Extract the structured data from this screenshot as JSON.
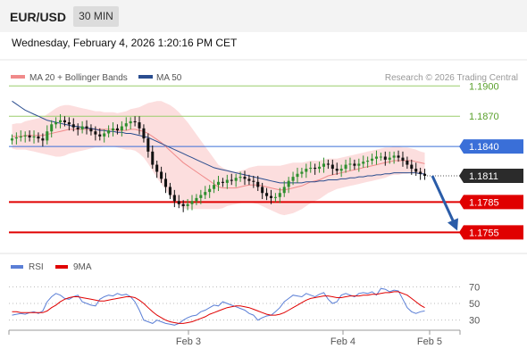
{
  "header": {
    "pair": "EUR/USD",
    "timeframe": "30 MIN"
  },
  "datetime": "Wednesday, February 4, 2026 1:20:16 PM CET",
  "legend": {
    "ma20": {
      "label": "MA 20 + Bollinger Bands",
      "color": "#f08a8a"
    },
    "ma50": {
      "label": "MA 50",
      "color": "#2a4d8f"
    }
  },
  "copyright": "Research © 2026 Trading Central",
  "rsi_legend": {
    "rsi": {
      "label": "RSI",
      "color": "#5b7fd6"
    },
    "ma9": {
      "label": "9MA",
      "color": "#e00000"
    }
  },
  "colors": {
    "up": "#2f8f2f",
    "down": "#111111",
    "resistance": "#9acd6b",
    "pivot": "#3a6fd8",
    "support": "#e00000",
    "current": "#333333",
    "arrow": "#2a5ca8"
  },
  "chart_data": [
    {
      "type": "candlestick",
      "ylim": [
        1.1735,
        1.1925
      ],
      "x_ticks": [
        "Feb 3",
        "Feb 4",
        "Feb 5"
      ],
      "levels": [
        {
          "label": "1.1900",
          "value": 1.19,
          "kind": "resistance"
        },
        {
          "label": "1.1870",
          "value": 1.187,
          "kind": "resistance"
        },
        {
          "label": "1.1840",
          "value": 1.184,
          "kind": "pivot"
        },
        {
          "label": "1.1811",
          "value": 1.1811,
          "kind": "current"
        },
        {
          "label": "1.1785",
          "value": 1.1785,
          "kind": "support"
        },
        {
          "label": "1.1755",
          "value": 1.1755,
          "kind": "support"
        }
      ],
      "close": [
        1.1848,
        1.1849,
        1.185,
        1.1851,
        1.1849,
        1.185,
        1.1848,
        1.1846,
        1.1855,
        1.1862,
        1.1864,
        1.1866,
        1.1864,
        1.1862,
        1.1859,
        1.1857,
        1.186,
        1.1858,
        1.1855,
        1.1852,
        1.185,
        1.1853,
        1.1856,
        1.1858,
        1.1856,
        1.186,
        1.1863,
        1.1865,
        1.1864,
        1.1858,
        1.1848,
        1.1835,
        1.1822,
        1.1815,
        1.1808,
        1.18,
        1.1792,
        1.1786,
        1.1783,
        1.1781,
        1.1783,
        1.1786,
        1.1789,
        1.1792,
        1.1795,
        1.1798,
        1.1802,
        1.1805,
        1.1804,
        1.1807,
        1.1806,
        1.1809,
        1.181,
        1.1808,
        1.1806,
        1.1805,
        1.18,
        1.1794,
        1.1791,
        1.1789,
        1.179,
        1.1794,
        1.18,
        1.1806,
        1.181,
        1.1813,
        1.1815,
        1.1818,
        1.1819,
        1.1818,
        1.182,
        1.1823,
        1.1822,
        1.1818,
        1.1816,
        1.1818,
        1.1822,
        1.1823,
        1.1821,
        1.1823,
        1.1825,
        1.1826,
        1.1828,
        1.183,
        1.183,
        1.1827,
        1.1829,
        1.1831,
        1.1829,
        1.1826,
        1.1822,
        1.1818,
        1.1815,
        1.1813,
        1.1811
      ],
      "ma20": [
        1.185,
        1.185,
        1.185,
        1.1851,
        1.1851,
        1.1851,
        1.1851,
        1.1851,
        1.1852,
        1.1853,
        1.1854,
        1.1855,
        1.1856,
        1.1857,
        1.1857,
        1.1857,
        1.1857,
        1.1857,
        1.1857,
        1.1857,
        1.1857,
        1.1857,
        1.1857,
        1.1857,
        1.1856,
        1.1856,
        1.1856,
        1.1857,
        1.1857,
        1.1856,
        1.1855,
        1.1853,
        1.185,
        1.1847,
        1.1844,
        1.184,
        1.1836,
        1.1832,
        1.1828,
        1.1824,
        1.1821,
        1.1818,
        1.1815,
        1.1812,
        1.1809,
        1.1806,
        1.1803,
        1.18,
        1.1799,
        1.1799,
        1.1799,
        1.1799,
        1.18,
        1.1801,
        1.1802,
        1.1802,
        1.1802,
        1.1801,
        1.18,
        1.1799,
        1.1798,
        1.1797,
        1.1797,
        1.1798,
        1.1799,
        1.18,
        1.1801,
        1.1803,
        1.1805,
        1.1806,
        1.1807,
        1.1809,
        1.1811,
        1.1812,
        1.1813,
        1.1814,
        1.1815,
        1.1816,
        1.1817,
        1.1818,
        1.1819,
        1.182,
        1.1821,
        1.1822,
        1.1823,
        1.1824,
        1.1825,
        1.1826,
        1.1826,
        1.1826,
        1.1826,
        1.1826,
        1.1825,
        1.1824,
        1.1823
      ],
      "ma50": [
        1.1885,
        1.1882,
        1.1879,
        1.1876,
        1.1874,
        1.1872,
        1.187,
        1.1868,
        1.1866,
        1.1865,
        1.1864,
        1.1863,
        1.1862,
        1.1861,
        1.186,
        1.186,
        1.1859,
        1.1858,
        1.1858,
        1.1857,
        1.1856,
        1.1856,
        1.1855,
        1.1855,
        1.1854,
        1.1854,
        1.1853,
        1.1853,
        1.1852,
        1.1851,
        1.185,
        1.1849,
        1.1847,
        1.1845,
        1.1843,
        1.1841,
        1.1839,
        1.1837,
        1.1835,
        1.1833,
        1.1831,
        1.1829,
        1.1827,
        1.1825,
        1.1823,
        1.1821,
        1.1819,
        1.1818,
        1.1817,
        1.1816,
        1.1815,
        1.1814,
        1.1813,
        1.1812,
        1.1811,
        1.181,
        1.1809,
        1.1808,
        1.1807,
        1.1806,
        1.1805,
        1.1804,
        1.1804,
        1.1804,
        1.1804,
        1.1804,
        1.1804,
        1.1805,
        1.1805,
        1.1805,
        1.1806,
        1.1806,
        1.1807,
        1.1807,
        1.1807,
        1.1808,
        1.1808,
        1.1809,
        1.1809,
        1.181,
        1.181,
        1.1811,
        1.1811,
        1.1812,
        1.1812,
        1.1813,
        1.1813,
        1.1814,
        1.1814,
        1.1814,
        1.1814,
        1.1814,
        1.1814,
        1.1813,
        1.1813
      ],
      "bb_width": [
        0.0012,
        0.0013,
        0.0013,
        0.0014,
        0.0015,
        0.0016,
        0.0017,
        0.0018,
        0.002,
        0.0022,
        0.0024,
        0.0025,
        0.0025,
        0.0024,
        0.0023,
        0.0022,
        0.0021,
        0.002,
        0.0019,
        0.0018,
        0.0018,
        0.0017,
        0.0017,
        0.0017,
        0.0017,
        0.0018,
        0.0019,
        0.002,
        0.0021,
        0.0023,
        0.0026,
        0.003,
        0.0034,
        0.0038,
        0.0041,
        0.0043,
        0.0045,
        0.0046,
        0.0046,
        0.0045,
        0.0043,
        0.004,
        0.0037,
        0.0034,
        0.0031,
        0.0028,
        0.0025,
        0.0022,
        0.002,
        0.0018,
        0.0017,
        0.0016,
        0.0016,
        0.0016,
        0.0017,
        0.0018,
        0.0019,
        0.002,
        0.0021,
        0.0022,
        0.0023,
        0.0024,
        0.0025,
        0.0025,
        0.0025,
        0.0024,
        0.0023,
        0.0022,
        0.0021,
        0.002,
        0.0019,
        0.0018,
        0.0017,
        0.0016,
        0.0015,
        0.0015,
        0.0015,
        0.0015,
        0.0015,
        0.0015,
        0.0015,
        0.0015,
        0.0015,
        0.0015,
        0.0015,
        0.0015,
        0.0014,
        0.0014,
        0.0014,
        0.0013,
        0.0013,
        0.0012,
        0.0012,
        0.0011,
        0.0011
      ],
      "projection": {
        "from": 1.1811,
        "to": 1.1755
      }
    },
    {
      "type": "line",
      "ylim": [
        20,
        80
      ],
      "y_ticks": [
        70,
        50,
        30
      ],
      "rsi": [
        36,
        37,
        38,
        37,
        39,
        40,
        38,
        41,
        52,
        58,
        62,
        60,
        56,
        55,
        58,
        60,
        52,
        50,
        48,
        47,
        55,
        58,
        60,
        59,
        62,
        60,
        61,
        58,
        52,
        42,
        30,
        28,
        26,
        30,
        28,
        26,
        25,
        24,
        26,
        30,
        33,
        35,
        36,
        40,
        42,
        45,
        48,
        47,
        52,
        50,
        48,
        46,
        44,
        42,
        38,
        36,
        30,
        33,
        35,
        36,
        40,
        45,
        52,
        56,
        60,
        59,
        58,
        62,
        60,
        58,
        61,
        63,
        55,
        50,
        52,
        60,
        62,
        60,
        58,
        62,
        63,
        62,
        64,
        60,
        68,
        67,
        64,
        66,
        65,
        55,
        45,
        40,
        38,
        40,
        41
      ],
      "ma9": [
        40,
        40,
        39,
        39,
        39,
        39,
        39,
        39,
        41,
        45,
        48,
        52,
        55,
        57,
        58,
        58,
        57,
        56,
        55,
        54,
        53,
        53,
        54,
        55,
        56,
        57,
        58,
        58,
        57,
        54,
        50,
        45,
        40,
        36,
        33,
        30,
        28,
        27,
        26,
        26,
        27,
        28,
        30,
        32,
        34,
        37,
        39,
        41,
        43,
        45,
        46,
        47,
        47,
        46,
        45,
        43,
        41,
        39,
        37,
        36,
        36,
        37,
        39,
        42,
        45,
        48,
        51,
        54,
        56,
        57,
        58,
        59,
        59,
        58,
        57,
        57,
        58,
        59,
        59,
        59,
        60,
        60,
        61,
        61,
        62,
        63,
        63,
        64,
        64,
        62,
        60,
        56,
        52,
        48,
        45
      ]
    }
  ]
}
